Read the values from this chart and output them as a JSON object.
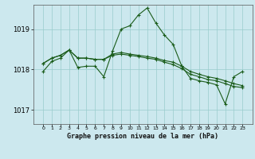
{
  "title": "Graphe pression niveau de la mer (hPa)",
  "background_color": "#cce8ee",
  "grid_color": "#99cccc",
  "line_color": "#1a5c1a",
  "ylim": [
    1016.65,
    1019.6
  ],
  "yticks": [
    1017,
    1018,
    1019
  ],
  "hours": [
    0,
    1,
    2,
    3,
    4,
    5,
    6,
    7,
    8,
    9,
    10,
    11,
    12,
    13,
    14,
    15,
    16,
    17,
    18,
    19,
    20,
    21,
    22,
    23
  ],
  "line1": [
    1017.95,
    1018.2,
    1018.28,
    1018.48,
    1018.05,
    1018.08,
    1018.08,
    1017.82,
    1018.45,
    1019.0,
    1019.08,
    1019.35,
    1019.52,
    1019.15,
    1018.85,
    1018.62,
    1018.08,
    1017.78,
    1017.72,
    1017.68,
    1017.62,
    1017.15,
    1017.82,
    1017.95
  ],
  "line2": [
    1018.15,
    1018.28,
    1018.35,
    1018.48,
    1018.28,
    1018.28,
    1018.25,
    1018.25,
    1018.38,
    1018.42,
    1018.38,
    1018.35,
    1018.32,
    1018.28,
    1018.22,
    1018.18,
    1018.08,
    1017.95,
    1017.88,
    1017.82,
    1017.78,
    1017.72,
    1017.65,
    1017.6
  ],
  "line3": [
    1018.15,
    1018.28,
    1018.35,
    1018.48,
    1018.28,
    1018.28,
    1018.25,
    1018.25,
    1018.35,
    1018.38,
    1018.35,
    1018.32,
    1018.28,
    1018.25,
    1018.18,
    1018.12,
    1018.02,
    1017.88,
    1017.82,
    1017.75,
    1017.72,
    1017.65,
    1017.58,
    1017.55
  ]
}
